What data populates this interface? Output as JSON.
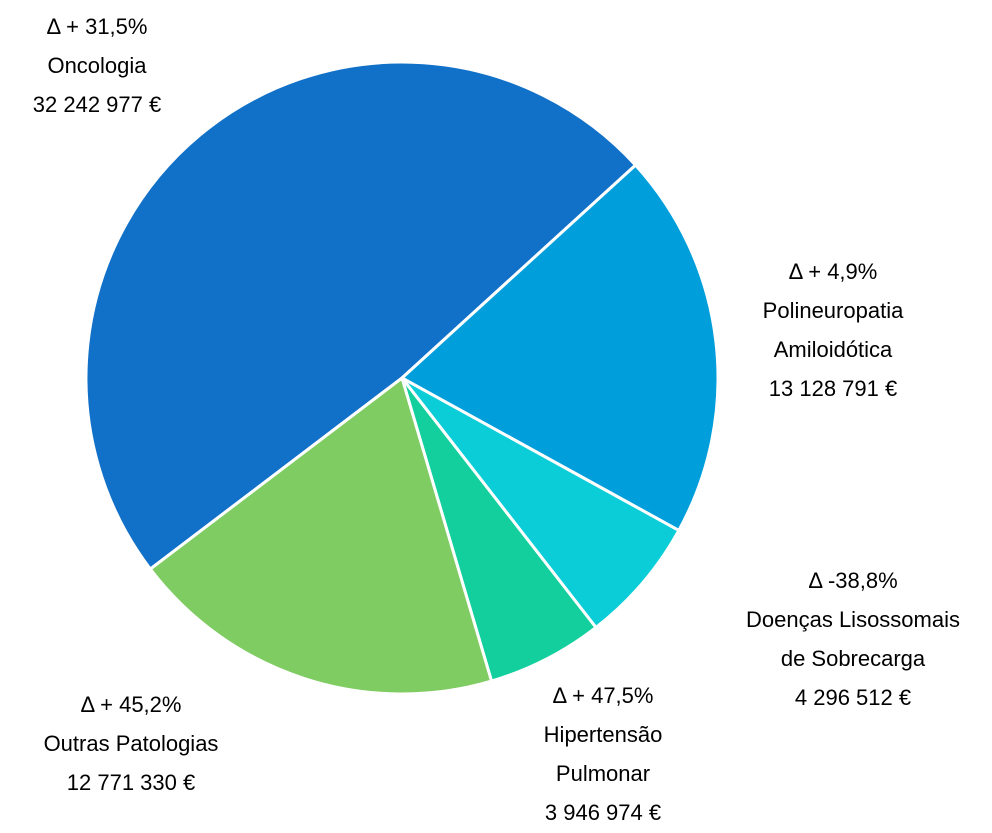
{
  "chart_data": {
    "type": "pie",
    "categories": [
      [
        "Oncologia"
      ],
      [
        "Polineuropatia",
        "Amiloidótica"
      ],
      [
        "Doenças Lisossomais",
        "de Sobrecarga"
      ],
      [
        "Hipertensão",
        "Pulmonar"
      ],
      [
        "Outras Patologias"
      ]
    ],
    "values": [
      32242977,
      13128791,
      4296512,
      3946974,
      12771330
    ],
    "value_labels": [
      "32 242 977 €",
      "13 128 791 €",
      "4 296 512 €",
      "3 946 974 €",
      "12 771 330 €"
    ],
    "annotations": [
      "Δ + 31,5%",
      "Δ + 4,9%",
      "Δ -38,8%",
      "Δ + 47,5%",
      "Δ + 45,2%"
    ],
    "colors": [
      "#1170c8",
      "#009fdb",
      "#0bcdd8",
      "#13cf9d",
      "#7fcc63"
    ]
  }
}
